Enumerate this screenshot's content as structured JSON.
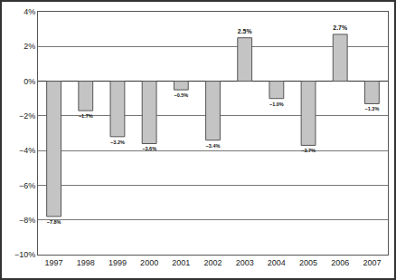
{
  "chart_data": {
    "type": "bar",
    "categories": [
      "1997",
      "1998",
      "1999",
      "2000",
      "2001",
      "2002",
      "2003",
      "2004",
      "2005",
      "2006",
      "2007"
    ],
    "values": [
      -7.8,
      -1.7,
      -3.2,
      -3.6,
      -0.5,
      -3.4,
      2.5,
      -1.0,
      -3.7,
      2.7,
      -1.3
    ],
    "value_labels": [
      "−7.8%",
      "−1.7%",
      "−3.2%",
      "−3.6%",
      "−0.5%",
      "−3.4%",
      "2.5%",
      "−1.0%",
      "−3.7%",
      "2.7%",
      "−1.3%"
    ],
    "data_labels": true,
    "color": "#c4c4c4",
    "ylim": [
      -10,
      4
    ],
    "yticks": [
      {
        "value": -10,
        "label": "−10%"
      },
      {
        "value": -8,
        "label": "−8%"
      },
      {
        "value": -6,
        "label": "−6%"
      },
      {
        "value": -4,
        "label": "−4%"
      },
      {
        "value": -2,
        "label": "−2%"
      },
      {
        "value": 0,
        "label": "0%"
      },
      {
        "value": 2,
        "label": "2%"
      },
      {
        "value": 4,
        "label": "4%"
      }
    ],
    "grid": true
  }
}
